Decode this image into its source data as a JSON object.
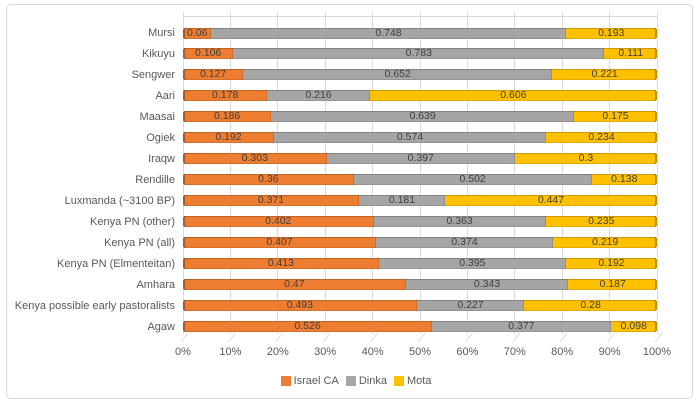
{
  "chart_data": {
    "type": "bar",
    "orientation": "horizontal-stacked-100%",
    "title": "",
    "categories": [
      "Mursi",
      "Kikuyu",
      "Sengwer",
      "Aari",
      "Maasai",
      "Ogiek",
      "Iraqw",
      "Rendille",
      "Luxmanda (~3100 BP)",
      "Kenya PN (other)",
      "Kenya PN (all)",
      "Kenya PN (Elmenteitan)",
      "Amhara",
      "Kenya possible early pastoralists",
      "Agaw"
    ],
    "series": [
      {
        "name": "Israel CA",
        "color": "#ED7D31",
        "values": [
          0.06,
          0.106,
          0.127,
          0.178,
          0.186,
          0.192,
          0.303,
          0.36,
          0.371,
          0.402,
          0.407,
          0.413,
          0.47,
          0.493,
          0.526
        ]
      },
      {
        "name": "Dinka",
        "color": "#A5A5A5",
        "values": [
          0.748,
          0.783,
          0.652,
          0.216,
          0.639,
          0.574,
          0.397,
          0.502,
          0.181,
          0.363,
          0.374,
          0.395,
          0.343,
          0.227,
          0.377
        ]
      },
      {
        "name": "Mota",
        "color": "#FFC000",
        "values": [
          0.193,
          0.111,
          0.221,
          0.606,
          0.175,
          0.234,
          0.3,
          0.138,
          0.447,
          0.235,
          0.219,
          0.192,
          0.187,
          0.28,
          0.098
        ]
      }
    ],
    "x_ticks": [
      "0%",
      "10%",
      "20%",
      "30%",
      "40%",
      "50%",
      "60%",
      "70%",
      "80%",
      "90%",
      "100%"
    ],
    "xlim": [
      0,
      1
    ],
    "data_labels": true,
    "gridlines": true,
    "legend_position": "bottom",
    "grid_color": "#D9D9D9",
    "label_color": "#595959",
    "data_label_color": "#404040"
  }
}
